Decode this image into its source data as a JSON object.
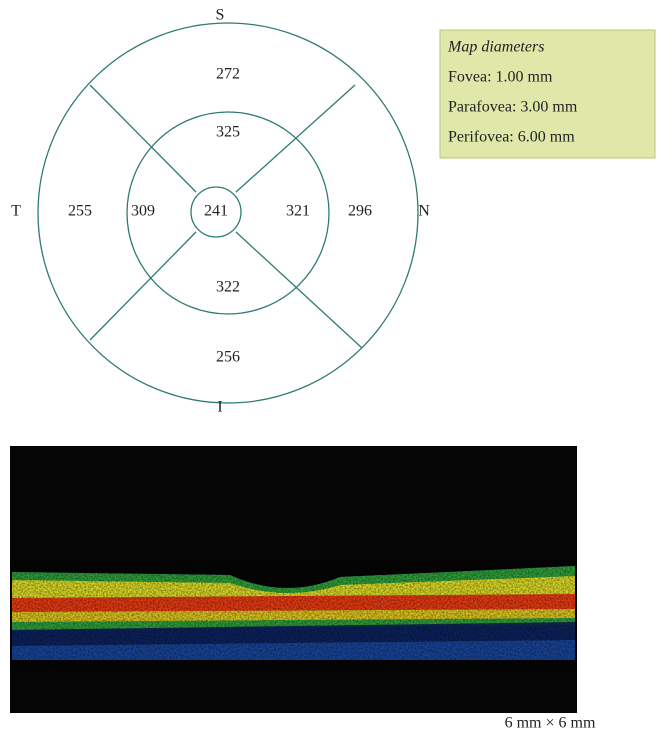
{
  "map": {
    "orientation": {
      "superior": "S",
      "temporal": "T",
      "nasal": "N",
      "inferior": "I"
    },
    "center": "241",
    "inner": {
      "superior": "325",
      "temporal": "309",
      "nasal": "321",
      "inferior": "322"
    },
    "outer": {
      "superior": "272",
      "temporal": "255",
      "nasal": "296",
      "inferior": "256"
    }
  },
  "legend": {
    "title": "Map diameters",
    "items": [
      "Fovea: 1.00 mm",
      "Parafovea: 3.00 mm",
      "Perifovea: 6.00 mm"
    ]
  },
  "scan": {
    "caption": "6 mm × 6 mm"
  }
}
